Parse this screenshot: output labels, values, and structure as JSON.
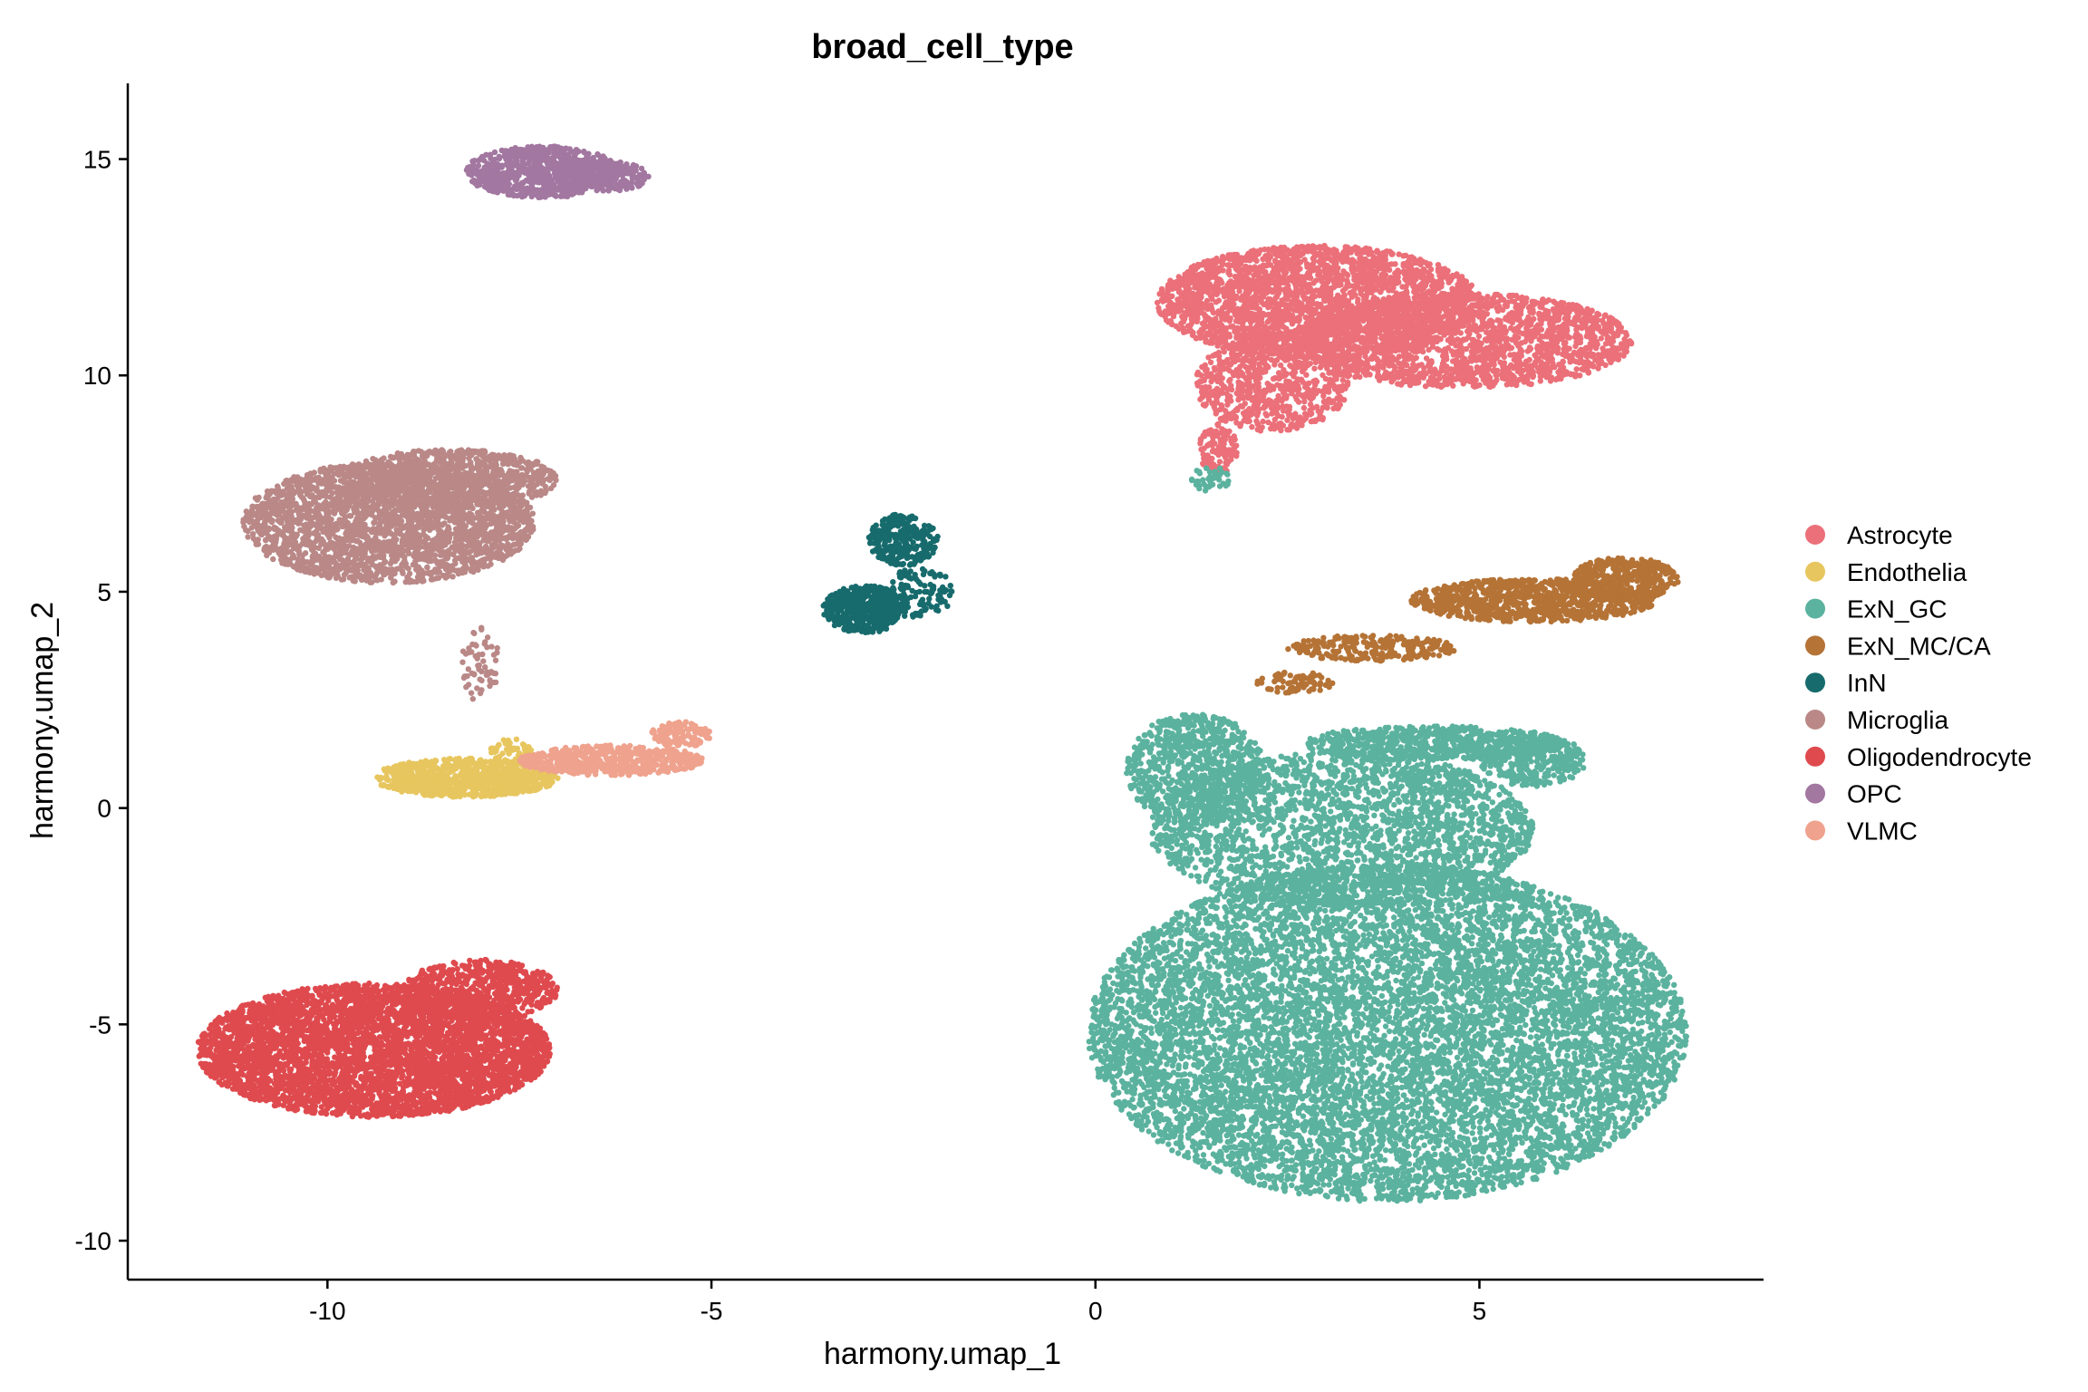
{
  "chart_data": {
    "type": "scatter",
    "title": "broad_cell_type",
    "xlabel": "harmony.umap_1",
    "ylabel": "harmony.umap_2",
    "xlim": [
      -12.6,
      8.7
    ],
    "ylim": [
      -10.9,
      16.75
    ],
    "xticks": [
      -10,
      -5,
      0,
      5
    ],
    "yticks": [
      -10,
      -5,
      0,
      5,
      10,
      15
    ],
    "grid": false,
    "legend_position": "right",
    "series": [
      {
        "name": "Astrocyte",
        "color": "#EB7079",
        "clusters": [
          {
            "cx": 2.9,
            "cy": 11.7,
            "rx": 2.1,
            "ry": 1.3,
            "n": 2600
          },
          {
            "cx": 4.8,
            "cy": 10.8,
            "rx": 2.2,
            "ry": 1.1,
            "n": 1900
          },
          {
            "cx": 2.3,
            "cy": 9.8,
            "rx": 1.0,
            "ry": 1.1,
            "n": 700
          },
          {
            "cx": 1.6,
            "cy": 8.3,
            "rx": 0.25,
            "ry": 0.6,
            "n": 120
          }
        ]
      },
      {
        "name": "Endothelia",
        "color": "#E8C65F",
        "clusters": [
          {
            "cx": -8.2,
            "cy": 0.7,
            "rx": 1.2,
            "ry": 0.45,
            "n": 900
          },
          {
            "cx": -7.6,
            "cy": 1.3,
            "rx": 0.3,
            "ry": 0.3,
            "n": 60
          }
        ]
      },
      {
        "name": "ExN_GC",
        "color": "#5BB29E",
        "clusters": [
          {
            "cx": 3.8,
            "cy": -5.2,
            "rx": 3.9,
            "ry": 3.9,
            "n": 9000
          },
          {
            "cx": 3.2,
            "cy": -0.5,
            "rx": 2.5,
            "ry": 1.8,
            "n": 2400
          },
          {
            "cx": 1.3,
            "cy": 0.9,
            "rx": 0.9,
            "ry": 1.3,
            "n": 800
          },
          {
            "cx": 4.4,
            "cy": 1.5,
            "rx": 1.7,
            "ry": 0.4,
            "n": 700
          },
          {
            "cx": 5.7,
            "cy": 1.1,
            "rx": 0.7,
            "ry": 0.6,
            "n": 300
          },
          {
            "cx": 1.5,
            "cy": 7.6,
            "rx": 0.25,
            "ry": 0.3,
            "n": 40
          }
        ]
      },
      {
        "name": "ExN_MC/CA",
        "color": "#B57336",
        "clusters": [
          {
            "cx": 5.7,
            "cy": 4.8,
            "rx": 1.6,
            "ry": 0.5,
            "n": 900
          },
          {
            "cx": 6.9,
            "cy": 5.3,
            "rx": 0.7,
            "ry": 0.5,
            "n": 400
          },
          {
            "cx": 3.6,
            "cy": 3.7,
            "rx": 1.1,
            "ry": 0.3,
            "n": 250
          },
          {
            "cx": 2.6,
            "cy": 2.9,
            "rx": 0.5,
            "ry": 0.25,
            "n": 80
          }
        ]
      },
      {
        "name": "InN",
        "color": "#176B6D",
        "clusters": [
          {
            "cx": -3.0,
            "cy": 4.6,
            "rx": 0.55,
            "ry": 0.55,
            "n": 500
          },
          {
            "cx": -2.5,
            "cy": 6.2,
            "rx": 0.45,
            "ry": 0.6,
            "n": 300
          },
          {
            "cx": -2.3,
            "cy": 5.0,
            "rx": 0.45,
            "ry": 0.6,
            "n": 120
          }
        ]
      },
      {
        "name": "Microglia",
        "color": "#B98887",
        "clusters": [
          {
            "cx": -9.2,
            "cy": 6.6,
            "rx": 1.9,
            "ry": 1.4,
            "n": 2600
          },
          {
            "cx": -8.4,
            "cy": 7.6,
            "rx": 1.4,
            "ry": 0.7,
            "n": 800
          },
          {
            "cx": -8.0,
            "cy": 3.3,
            "rx": 0.25,
            "ry": 0.9,
            "n": 60
          }
        ]
      },
      {
        "name": "Oligodendrocyte",
        "color": "#DF4A4E",
        "clusters": [
          {
            "cx": -9.4,
            "cy": -5.6,
            "rx": 2.3,
            "ry": 1.55,
            "n": 4500
          },
          {
            "cx": -8.0,
            "cy": -4.2,
            "rx": 1.0,
            "ry": 0.7,
            "n": 600
          }
        ]
      },
      {
        "name": "OPC",
        "color": "#A277A0",
        "clusters": [
          {
            "cx": -7.2,
            "cy": 14.7,
            "rx": 1.0,
            "ry": 0.6,
            "n": 800
          },
          {
            "cx": -6.4,
            "cy": 14.6,
            "rx": 0.6,
            "ry": 0.35,
            "n": 200
          }
        ]
      },
      {
        "name": "VLMC",
        "color": "#EFA28D",
        "clusters": [
          {
            "cx": -6.3,
            "cy": 1.1,
            "rx": 1.2,
            "ry": 0.35,
            "n": 600
          },
          {
            "cx": -5.4,
            "cy": 1.7,
            "rx": 0.4,
            "ry": 0.3,
            "n": 120
          }
        ]
      }
    ]
  }
}
